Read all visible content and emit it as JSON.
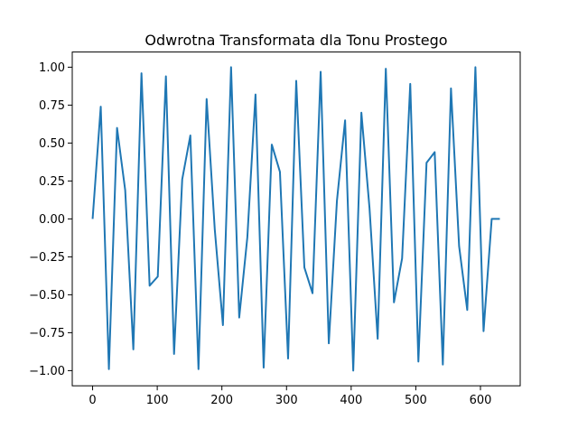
{
  "chart_data": {
    "type": "line",
    "title": "Odwrotna Transformata dla Tonu Prostego",
    "xlabel": "",
    "ylabel": "",
    "xlim": [
      -31.5,
      661.5
    ],
    "ylim": [
      -1.1,
      1.1
    ],
    "x_ticks": [
      0,
      100,
      200,
      300,
      400,
      500,
      600
    ],
    "x_tick_labels": [
      "0",
      "100",
      "200",
      "300",
      "400",
      "500",
      "600"
    ],
    "y_ticks": [
      1.0,
      0.75,
      0.5,
      0.25,
      0.0,
      -0.25,
      -0.5,
      -0.75,
      -1.0
    ],
    "y_tick_labels": [
      "1.00",
      "0.75",
      "0.50",
      "0.25",
      "0.00",
      "−0.25",
      "−0.50",
      "−0.75",
      "−1.00"
    ],
    "grid": false,
    "series_color": "#1f77b4",
    "series": [
      {
        "x": [
          0,
          12.6,
          25.2,
          37.8,
          50.4,
          63.0,
          75.6,
          88.2,
          100.8,
          113.4,
          126.0,
          138.6,
          151.2,
          163.8,
          176.4,
          189.0,
          201.6,
          214.2,
          226.8,
          239.4,
          252.0,
          264.6,
          277.2,
          289.8,
          302.4,
          315.0,
          327.6,
          340.2,
          352.8,
          365.4,
          378.0,
          390.6,
          403.2,
          415.8,
          428.4,
          441.0,
          453.6,
          466.2,
          478.8,
          491.4,
          504.0,
          516.6,
          529.2,
          541.8,
          554.4,
          567.0,
          579.6,
          592.2,
          604.8,
          617.4,
          630.0
        ],
        "values": [
          0.0,
          0.74,
          -0.99,
          0.6,
          0.19,
          -0.86,
          0.96,
          -0.44,
          -0.38,
          0.94,
          -0.89,
          0.26,
          0.55,
          -0.99,
          0.79,
          -0.07,
          -0.7,
          1.0,
          -0.65,
          -0.12,
          0.82,
          -0.98,
          0.49,
          0.31,
          -0.92,
          0.91,
          -0.32,
          -0.49,
          0.97,
          -0.82,
          0.12,
          0.65,
          -1.0,
          0.7,
          0.07,
          -0.79,
          0.99,
          -0.55,
          -0.26,
          0.89,
          -0.94,
          0.37,
          0.44,
          -0.96,
          0.86,
          -0.18,
          -0.6,
          1.0,
          -0.74,
          0.0,
          0.0
        ]
      }
    ]
  }
}
